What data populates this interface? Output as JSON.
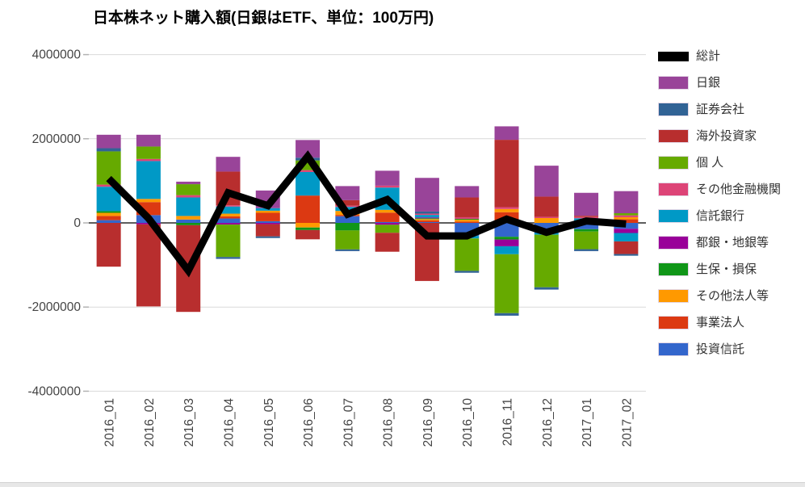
{
  "title": "日本株ネット購入額(日銀はETF、単位：100万円)",
  "chart_data": {
    "type": "bar",
    "subtype": "stacked-column-with-line-overlay",
    "title": "日本株ネット購入額(日銀はETF、単位：100万円)",
    "xlabel": "",
    "ylabel": "",
    "ylim": [
      -4000000,
      4000000
    ],
    "grid": true,
    "legend_position": "right",
    "axis_text_color": "#444444",
    "gridline_color": "#d9d9d9",
    "zero_line_color": "#5e5e5e",
    "categories": [
      "2016_01",
      "2016_02",
      "2016_03",
      "2016_04",
      "2016_05",
      "2016_06",
      "2016_07",
      "2016_08",
      "2016_09",
      "2016_10",
      "2016_11",
      "2016_12",
      "2017_01",
      "2017_02"
    ],
    "yticks": [
      {
        "value": 4000000,
        "label": "4000000"
      },
      {
        "value": 2000000,
        "label": "2000000"
      },
      {
        "value": 0,
        "label": "0"
      },
      {
        "value": -2000000,
        "label": "-2000000"
      },
      {
        "value": -4000000,
        "label": "-4000000"
      }
    ],
    "series": [
      {
        "name": "投資信託",
        "color": "#3366CC",
        "values": [
          65000,
          185000,
          80000,
          105000,
          40000,
          0,
          160000,
          20000,
          20000,
          -310000,
          -330000,
          -240000,
          -150000,
          -140000
        ]
      },
      {
        "name": "事業法人",
        "color": "#DC3912",
        "values": [
          100000,
          310000,
          0,
          50000,
          200000,
          650000,
          30000,
          225000,
          40000,
          30000,
          255000,
          0,
          20000,
          85000
        ]
      },
      {
        "name": "その他法人等",
        "color": "#FF9900",
        "values": [
          75000,
          75000,
          85000,
          65000,
          50000,
          -110000,
          95000,
          65000,
          30000,
          45000,
          75000,
          115000,
          25000,
          50000
        ]
      },
      {
        "name": "生保・損保",
        "color": "#109618",
        "values": [
          40000,
          0,
          -55000,
          0,
          0,
          -60000,
          -180000,
          0,
          20000,
          20000,
          -65000,
          0,
          -55000,
          0
        ]
      },
      {
        "name": "都銀・地銀等",
        "color": "#990099",
        "values": [
          0,
          -35000,
          0,
          -40000,
          -30000,
          0,
          0,
          -45000,
          20000,
          0,
          -160000,
          0,
          0,
          -100000
        ]
      },
      {
        "name": "信託銀行",
        "color": "#0099C6",
        "values": [
          580000,
          900000,
          440000,
          170000,
          60000,
          560000,
          95000,
          530000,
          60000,
          -60000,
          -190000,
          -40000,
          65000,
          -200000
        ]
      },
      {
        "name": "その他金融機関",
        "color": "#DD4477",
        "values": [
          50000,
          50000,
          55000,
          30000,
          0,
          45000,
          30000,
          45000,
          30000,
          40000,
          45000,
          30000,
          30000,
          45000
        ]
      },
      {
        "name": "個 人",
        "color": "#66AA00",
        "values": [
          790000,
          295000,
          260000,
          -770000,
          0,
          230000,
          -450000,
          -190000,
          0,
          -770000,
          -1400000,
          -1250000,
          -420000,
          50000
        ]
      },
      {
        "name": "海外投資家",
        "color": "#B82E2E",
        "values": [
          -1040000,
          -1950000,
          -2060000,
          800000,
          -290000,
          -220000,
          130000,
          -450000,
          -1380000,
          470000,
          1600000,
          480000,
          30000,
          -300000
        ]
      },
      {
        "name": "証券会社",
        "color": "#316395",
        "values": [
          75000,
          0,
          0,
          -45000,
          -40000,
          65000,
          -40000,
          0,
          50000,
          -45000,
          -60000,
          -55000,
          -45000,
          -40000
        ]
      },
      {
        "name": "日銀",
        "color": "#994499",
        "values": [
          320000,
          280000,
          60000,
          350000,
          420000,
          420000,
          335000,
          355000,
          800000,
          270000,
          320000,
          735000,
          545000,
          525000
        ]
      }
    ],
    "line_series": {
      "name": "総計",
      "color": "#000000",
      "values": [
        1055000,
        110000,
        -1135000,
        715000,
        410000,
        1580000,
        205000,
        555000,
        -310000,
        -310000,
        90000,
        -225000,
        45000,
        -25000
      ]
    },
    "legend": [
      {
        "label": "総計",
        "color": "#000000",
        "swatch": "line"
      },
      {
        "label": "日銀",
        "color": "#994499",
        "swatch": "box"
      },
      {
        "label": "証券会社",
        "color": "#316395",
        "swatch": "box"
      },
      {
        "label": "海外投資家",
        "color": "#B82E2E",
        "swatch": "box"
      },
      {
        "label": "個 人",
        "color": "#66AA00",
        "swatch": "box"
      },
      {
        "label": "その他金融機関",
        "color": "#DD4477",
        "swatch": "box"
      },
      {
        "label": "信託銀行",
        "color": "#0099C6",
        "swatch": "box"
      },
      {
        "label": "都銀・地銀等",
        "color": "#990099",
        "swatch": "box"
      },
      {
        "label": "生保・損保",
        "color": "#109618",
        "swatch": "box"
      },
      {
        "label": "その他法人等",
        "color": "#FF9900",
        "swatch": "box"
      },
      {
        "label": "事業法人",
        "color": "#DC3912",
        "swatch": "box"
      },
      {
        "label": "投資信託",
        "color": "#3366CC",
        "swatch": "box"
      }
    ]
  }
}
